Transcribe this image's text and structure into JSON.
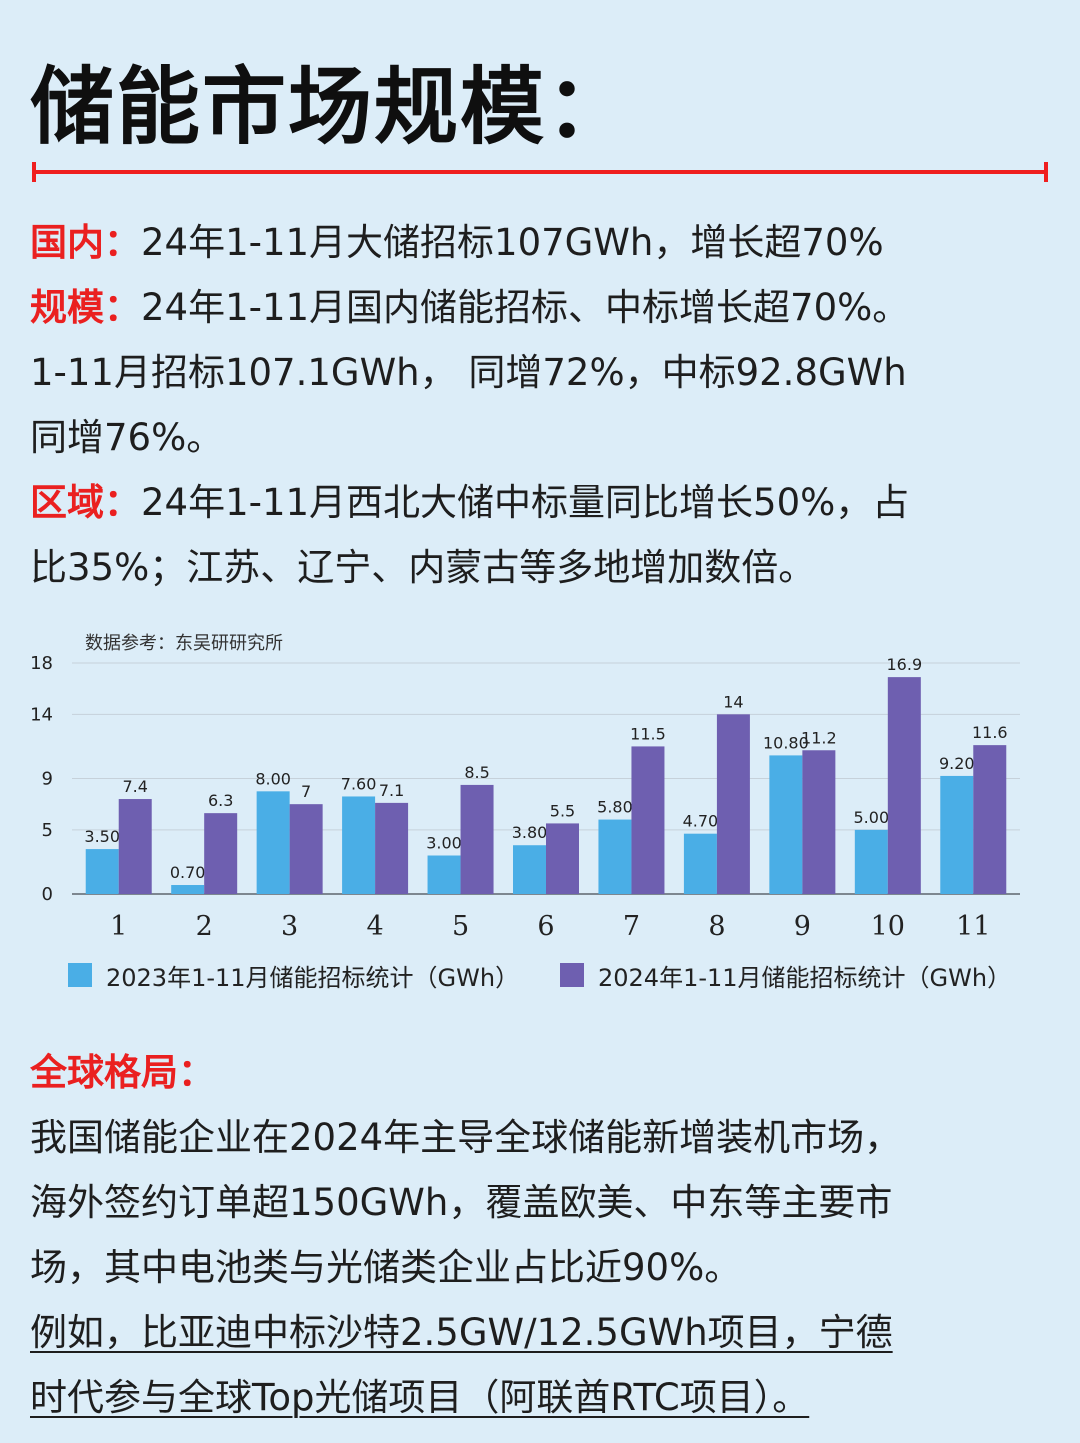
{
  "header": {
    "title": "储能市场规模："
  },
  "domestic": {
    "label": "国内：",
    "text": "24年1-11月大储招标107GWh，增长超70%"
  },
  "scale": {
    "label": "规模：",
    "line1": "24年1-11月国内储能招标、中标增长超70%。",
    "line2": "1-11月招标107.1GWh， 同增72%，中标92.8GWh",
    "line3": "同增76%。"
  },
  "region": {
    "label": "区域：",
    "line1": "24年1-11月西北大储中标量同比增长50%，占",
    "line2": "比35%；江苏、辽宁、内蒙古等多地增加数倍。"
  },
  "chart_data": {
    "type": "bar",
    "source_note": "数据参考：东吴研研究所",
    "categories": [
      "1",
      "2",
      "3",
      "4",
      "5",
      "6",
      "7",
      "8",
      "9",
      "10",
      "11"
    ],
    "series": [
      {
        "name": "2023年1-11月储能招标统计（GWh）",
        "color": "#4aaee6",
        "values": [
          3.5,
          0.7,
          8.0,
          7.6,
          3.0,
          3.8,
          5.8,
          4.7,
          10.8,
          5.0,
          9.2
        ],
        "labels": [
          "3.50",
          "0.70",
          "8.00",
          "7.60",
          "3.00",
          "3.80",
          "5.80",
          "4.70",
          "10.80",
          "5.00",
          "9.20"
        ]
      },
      {
        "name": "2024年1-11月储能招标统计（GWh）",
        "color": "#6e5fb0",
        "values": [
          7.4,
          6.3,
          7,
          7.1,
          8.5,
          5.5,
          11.5,
          14,
          11.2,
          16.9,
          11.6
        ],
        "labels": [
          "7.4",
          "6.3",
          "7",
          "7.1",
          "8.5",
          "5.5",
          "11.5",
          "14",
          "11.2",
          "16.9",
          "11.6"
        ]
      }
    ],
    "y_ticks": [
      "0",
      "5",
      "9",
      "14",
      "18"
    ],
    "ylim": [
      0,
      18
    ],
    "grid": true,
    "legend": "bottom"
  },
  "global": {
    "label": "全球格局：",
    "line1": "我国储能企业在2024年主导全球储能新增装机市场，",
    "line2": "海外签约订单超150GWh，覆盖欧美、中东等主要市",
    "line3": "场，其中电池类与光储类企业占比近90%。",
    "line4": "例如，比亚迪中标沙特2.5GW/12.5GWh项目，宁德",
    "line5": "时代参与全球Top光储项目（阿联酋RTC项目）。"
  }
}
